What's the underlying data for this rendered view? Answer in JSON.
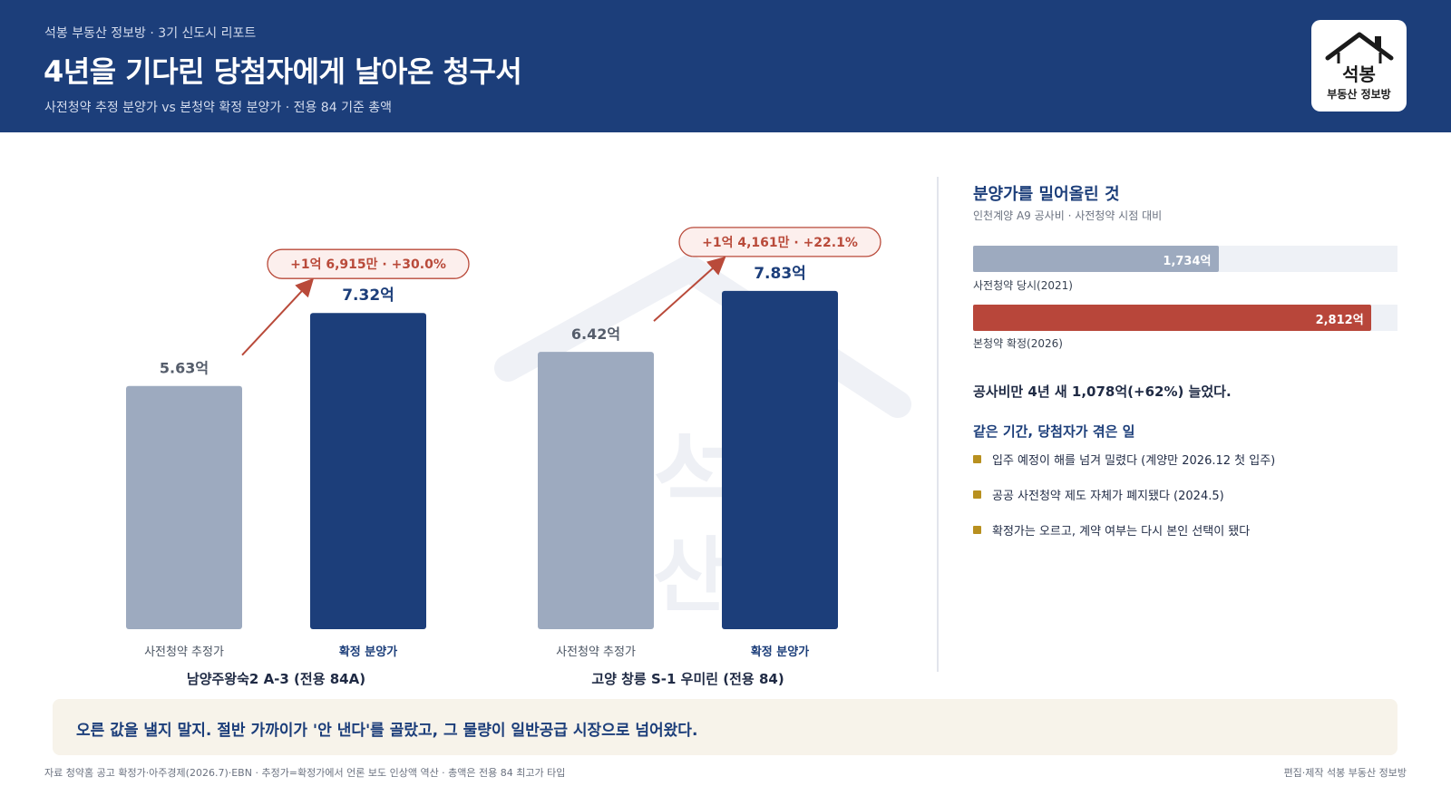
{
  "header": {
    "kicker": "석봉 부동산 정보방 · 3기 신도시 리포트",
    "title": "4년을 기다린 당첨자에게 날아온 청구서",
    "subtitle": "사전청약 추정 분양가 vs 본청약 확정 분양가 · 전용 84 기준 총액"
  },
  "logo": {
    "name": "석봉",
    "sub": "부동산 정보방",
    "watermark_line1": "석",
    "watermark_line2": "산  방"
  },
  "colors": {
    "header_bg": "#1c3e7a",
    "estimate_bar": "#9daabf",
    "final_bar": "#1c3e7a",
    "arrow": "#b94a3a",
    "highlight": "#b8463a",
    "bullet": "#b8901f"
  },
  "chart_data": {
    "type": "bar",
    "unit": "억",
    "ylim": [
      0,
      9
    ],
    "series_labels": [
      "사전청약 추정가",
      "확정 분양가"
    ],
    "groups": [
      {
        "name": "남양주왕숙2 A-3 (전용 84A)",
        "values": [
          5.63,
          7.32
        ],
        "value_labels": [
          "5.63억",
          "7.32억"
        ],
        "change_label": "+1억 6,915만 · +30.0%"
      },
      {
        "name": "고양 창릉 S-1 우미린 (전용 84)",
        "values": [
          6.42,
          7.83
        ],
        "value_labels": [
          "6.42억",
          "7.83억"
        ],
        "change_label": "+1억 4,161만 · +22.1%"
      }
    ]
  },
  "side": {
    "title": "분양가를 밀어올린 것",
    "subtitle": "인천계양 A9 공사비 · 사전청약 시점 대비",
    "bars": [
      {
        "value": 1734,
        "value_label": "1,734억",
        "label": "사전청약 당시(2021)",
        "color": "#9daabf"
      },
      {
        "value": 2812,
        "value_label": "2,812억",
        "label": "본청약 확정(2026)",
        "color": "#b8463a"
      }
    ],
    "bar_max": 3000,
    "stat": "공사비만 4년 새 1,078억(+62%) 늘었다.",
    "events_title": "같은 기간, 당첨자가 겪은 일",
    "events": [
      "입주 예정이 해를 넘겨 밀렸다 (계양만 2026.12 첫 입주)",
      "공공 사전청약 제도 자체가 폐지됐다 (2024.5)",
      "확정가는 오르고, 계약 여부는 다시 본인 선택이 됐다"
    ]
  },
  "callout": "오른 값을 낼지 말지. 절반 가까이가 '안 낸다'를 골랐고, 그 물량이 일반공급 시장으로 넘어왔다.",
  "footer": {
    "source": "자료 청약홈 공고 확정가·아주경제(2026.7)·EBN · 추정가=확정가에서 언론 보도 인상액 역산 · 총액은 전용 84 최고가 타입",
    "credit": "편집·제작 석봉 부동산 정보방"
  }
}
